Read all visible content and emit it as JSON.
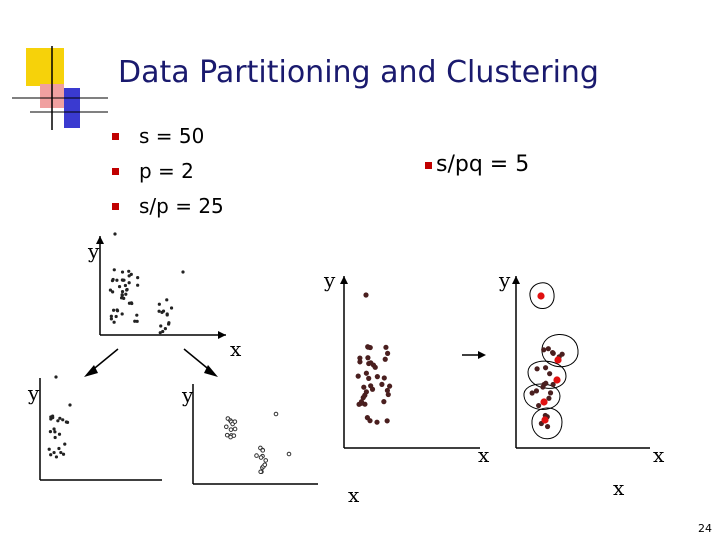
{
  "slide": {
    "title": "Data Partitioning and Clustering",
    "bullets": [
      "s = 50",
      "p = 2",
      "s/p = 25"
    ],
    "right_bullet": "s/pq = 5",
    "page_number": "24"
  },
  "axes": {
    "x_label": "x",
    "y_label": "y"
  },
  "colors": {
    "title": "#1a1a6e",
    "bullet": "#c00000",
    "point_dark": "#4a1f1f",
    "point_red": "#e01010",
    "logo_yellow": "#f6d20a",
    "logo_blue": "#3a3ad0",
    "logo_pink": "#f0a0a0"
  },
  "icons": {
    "logo": "colored-squares-logo",
    "partition-arrow-left": "arrow",
    "partition-arrow-right": "arrow",
    "transition-arrow": "arrow"
  }
}
